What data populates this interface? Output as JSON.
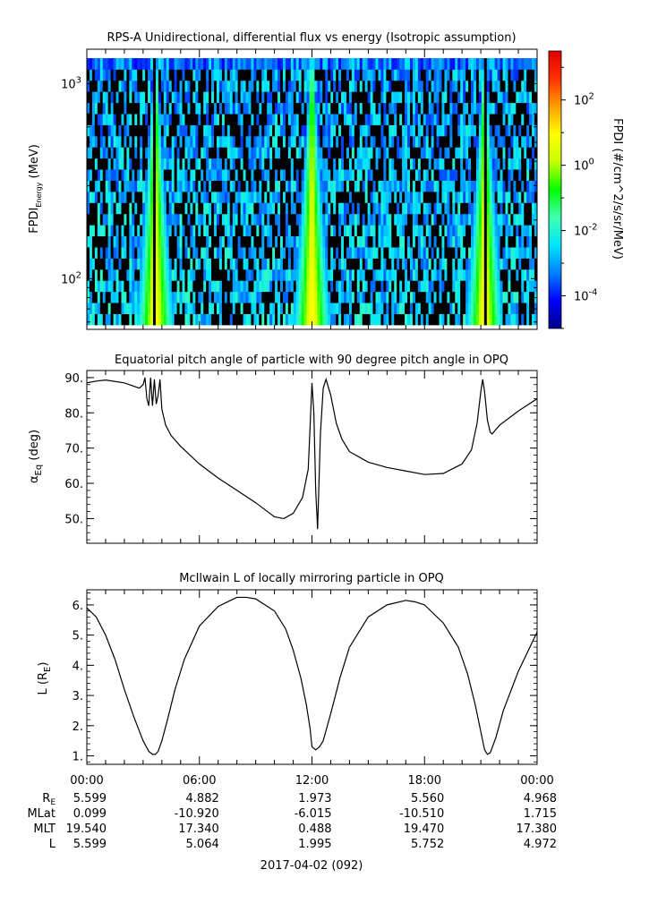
{
  "colors": {
    "curve": "#000000",
    "colorbar_stops": [
      "#00008b",
      "#0000ff",
      "#0080ff",
      "#00e5ff",
      "#40ffb0",
      "#00ff00",
      "#c8ff00",
      "#ffff00",
      "#ffa000",
      "#ff3000",
      "#e00000"
    ]
  },
  "chart_data": [
    {
      "type": "heatmap",
      "title": "RPS-A Unidirectional, differential flux vs energy (Isotropic assumption)",
      "ylabel_main": "FPDI",
      "ylabel_sub": "Energy",
      "ylabel_unit": "(MeV)",
      "y_scale": "log",
      "ylim": [
        55,
        1500
      ],
      "y_ticks": [
        {
          "value": 100,
          "base": "10",
          "exp": "2"
        },
        {
          "value": 1000,
          "base": "10",
          "exp": "3"
        }
      ],
      "energy_band": [
        58,
        1350
      ],
      "colorbar": {
        "label": "FPDI (#/cm^2/s/sr/MeV)",
        "scale": "log",
        "log_range": [
          -5,
          3.5
        ],
        "ticks": [
          {
            "log": 2,
            "base": "10",
            "exp": "2"
          },
          {
            "log": 0,
            "base": "10",
            "exp": "0"
          },
          {
            "log": -2,
            "base": "10",
            "exp": "-2"
          },
          {
            "log": -4,
            "base": "10",
            "exp": "-4"
          }
        ]
      },
      "belt_passes_hours": [
        3.65,
        12.0,
        21.2
      ]
    },
    {
      "type": "line",
      "title": "Equatorial pitch angle of particle with 90 degree pitch angle in OPQ",
      "ylabel_main": "α",
      "ylabel_sub": "Eq",
      "ylabel_unit": "(deg)",
      "ylim": [
        43,
        92
      ],
      "y_ticks": [
        "50.",
        "60.",
        "70.",
        "80.",
        "90."
      ],
      "x_hours": [
        0,
        0.5,
        1,
        2,
        2.8,
        3.0,
        3.1,
        3.2,
        3.3,
        3.4,
        3.5,
        3.6,
        3.7,
        3.8,
        3.9,
        4.0,
        4.2,
        4.5,
        5.0,
        6.0,
        7.0,
        8.0,
        9.0,
        9.5,
        10.0,
        10.5,
        11.0,
        11.5,
        11.8,
        11.9,
        12.0,
        12.1,
        12.2,
        12.3,
        12.45,
        12.6,
        12.75,
        13.0,
        13.3,
        13.6,
        14.0,
        15.0,
        16.0,
        17.0,
        18.0,
        19.0,
        20.0,
        20.5,
        20.8,
        21.0,
        21.1,
        21.2,
        21.35,
        21.5,
        21.6,
        22.0,
        23.0,
        24.0
      ],
      "values": [
        88.5,
        89.0,
        89.3,
        88.5,
        87.0,
        88.0,
        90.0,
        84.0,
        82.0,
        90.0,
        82.0,
        89.5,
        82.5,
        85.0,
        89.5,
        81.0,
        76.5,
        73.5,
        70.5,
        65.5,
        61.5,
        58.0,
        54.5,
        52.5,
        50.5,
        50.0,
        51.5,
        56.0,
        64.0,
        76.0,
        88.5,
        80.0,
        58.0,
        47.0,
        74.0,
        87.0,
        89.5,
        85.0,
        77.0,
        72.5,
        69.0,
        66.0,
        64.5,
        63.5,
        62.5,
        62.8,
        65.5,
        69.5,
        77.0,
        86.0,
        89.5,
        86.0,
        78.0,
        74.5,
        74.0,
        76.5,
        80.5,
        84.0
      ]
    },
    {
      "type": "line",
      "title": "McIlwain L of locally mirroring particle in OPQ",
      "ylabel_main": "L (R",
      "ylabel_sub": "E",
      "ylabel_unit": ")",
      "ylim": [
        0.72,
        6.5
      ],
      "y_ticks": [
        "1.",
        "2.",
        "3.",
        "4.",
        "5.",
        "6."
      ],
      "x_hours": [
        0,
        0.5,
        1.0,
        1.5,
        2.0,
        2.5,
        3.0,
        3.3,
        3.5,
        3.65,
        3.8,
        4.0,
        4.3,
        4.7,
        5.2,
        6.0,
        7.0,
        8.0,
        8.5,
        9.0,
        10.0,
        10.6,
        11.0,
        11.4,
        11.7,
        11.9,
        12.0,
        12.2,
        12.4,
        12.6,
        13.0,
        13.5,
        14.0,
        15.0,
        16.0,
        17.0,
        17.5,
        18.0,
        19.0,
        19.8,
        20.3,
        20.7,
        21.0,
        21.2,
        21.35,
        21.5,
        21.8,
        22.2,
        23.0,
        24.0
      ],
      "values": [
        5.9,
        5.6,
        5.0,
        4.2,
        3.2,
        2.3,
        1.5,
        1.15,
        1.05,
        1.05,
        1.15,
        1.5,
        2.2,
        3.2,
        4.2,
        5.3,
        5.95,
        6.25,
        6.25,
        6.2,
        5.8,
        5.2,
        4.5,
        3.6,
        2.7,
        1.9,
        1.3,
        1.2,
        1.3,
        1.5,
        2.4,
        3.6,
        4.6,
        5.6,
        6.0,
        6.15,
        6.1,
        6.0,
        5.4,
        4.6,
        3.7,
        2.7,
        1.8,
        1.2,
        1.05,
        1.1,
        1.6,
        2.5,
        3.8,
        5.1
      ]
    }
  ],
  "x_axis": {
    "ticks": [
      "00:00",
      "06:00",
      "12:00",
      "18:00",
      "00:00"
    ],
    "minor_per_major": 6,
    "rows": [
      {
        "label_main": "R",
        "label_sub": "E",
        "values": [
          "5.599",
          "4.882",
          "1.973",
          "5.560",
          "4.968"
        ]
      },
      {
        "label_main": "MLat",
        "label_sub": "",
        "values": [
          "0.099",
          "-10.920",
          "-6.015",
          "-10.510",
          "1.715"
        ]
      },
      {
        "label_main": "MLT",
        "label_sub": "",
        "values": [
          "19.540",
          "17.340",
          "0.488",
          "19.470",
          "17.380"
        ]
      },
      {
        "label_main": "L",
        "label_sub": "",
        "values": [
          "5.599",
          "5.064",
          "1.995",
          "5.752",
          "4.972"
        ]
      }
    ],
    "date_label": "2017-04-02 (092)"
  }
}
